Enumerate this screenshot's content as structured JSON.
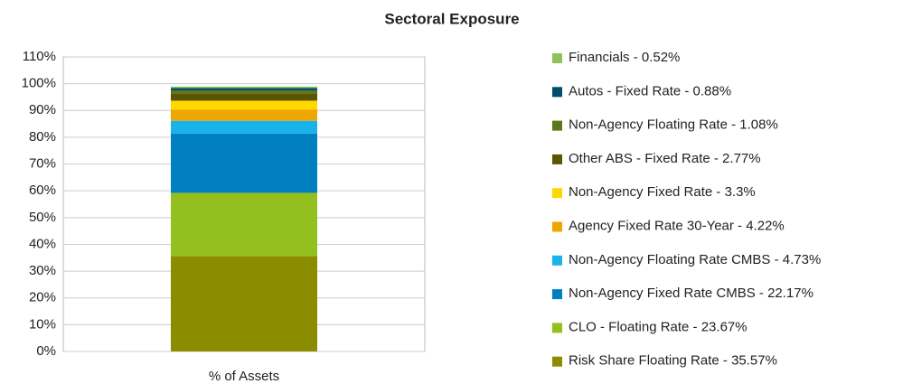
{
  "chart_data": {
    "type": "stacked_bar",
    "title": "Sectoral Exposure",
    "categories": [
      "% of Assets"
    ],
    "ylim": [
      0,
      110
    ],
    "yticks": [
      {
        "value": 0,
        "label": "0%"
      },
      {
        "value": 10,
        "label": "10%"
      },
      {
        "value": 20,
        "label": "20%"
      },
      {
        "value": 30,
        "label": "30%"
      },
      {
        "value": 40,
        "label": "40%"
      },
      {
        "value": 50,
        "label": "50%"
      },
      {
        "value": 60,
        "label": "60%"
      },
      {
        "value": 70,
        "label": "70%"
      },
      {
        "value": 80,
        "label": "80%"
      },
      {
        "value": 90,
        "label": "90%"
      },
      {
        "value": 100,
        "label": "100%"
      },
      {
        "value": 110,
        "label": "110%"
      }
    ],
    "grid": true,
    "legend": "right",
    "series": [
      {
        "name": "Risk Share Floating Rate - 35.57%",
        "color": "#8b8c00",
        "values": [
          35.57
        ]
      },
      {
        "name": "CLO - Floating Rate - 23.67%",
        "color": "#93c01f",
        "values": [
          23.67
        ]
      },
      {
        "name": "Non-Agency Fixed Rate CMBS - 22.17%",
        "color": "#0080c0",
        "values": [
          22.17
        ]
      },
      {
        "name": "Non-Agency Floating Rate CMBS - 4.73%",
        "color": "#1ab2ea",
        "values": [
          4.73
        ]
      },
      {
        "name": "Agency Fixed Rate 30-Year - 4.22%",
        "color": "#eea600",
        "values": [
          4.22
        ]
      },
      {
        "name": "Non-Agency Fixed Rate - 3.3%",
        "color": "#ffd800",
        "values": [
          3.3
        ]
      },
      {
        "name": "Other ABS - Fixed Rate - 2.77%",
        "color": "#5b5400",
        "values": [
          2.77
        ]
      },
      {
        "name": "Non-Agency Floating Rate - 1.08%",
        "color": "#587a1c",
        "values": [
          1.08
        ]
      },
      {
        "name": "Autos - Fixed Rate - 0.88%",
        "color": "#004d6e",
        "values": [
          0.88
        ]
      },
      {
        "name": "Financials - 0.52%",
        "color": "#8fc35a",
        "values": [
          0.52
        ]
      }
    ]
  }
}
